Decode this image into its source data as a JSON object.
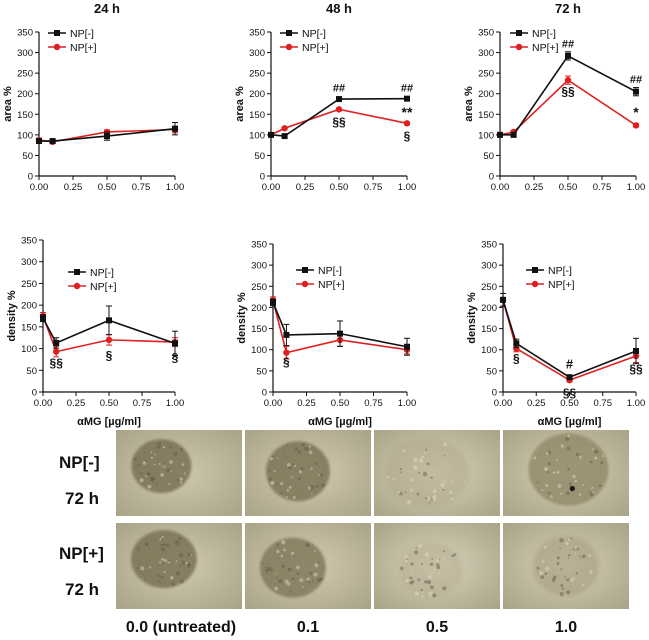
{
  "colors": {
    "np_minus": "#111111",
    "np_plus": "#e02020",
    "axis": "#111111"
  },
  "chart_data": [
    {
      "type": "line",
      "title": "24 h",
      "xlabel": "",
      "ylabel": "area %",
      "x": [
        0.0,
        0.1,
        0.5,
        1.0
      ],
      "xlim": [
        0,
        1
      ],
      "ylim": [
        0,
        350
      ],
      "xticks": [
        "0.00",
        "0.25",
        "0.50",
        "0.75",
        "1.00"
      ],
      "yticks": [
        "0",
        "50",
        "100",
        "150",
        "200",
        "250",
        "300",
        "350"
      ],
      "legend": [
        "NP[-]",
        "NP[+]"
      ],
      "legend_position": "top-left",
      "series": [
        {
          "name": "NP[-]",
          "values": [
            85,
            85,
            97,
            115
          ],
          "errors": [
            6,
            4,
            10,
            15
          ]
        },
        {
          "name": "NP[+]",
          "values": [
            87,
            83,
            107,
            113
          ],
          "errors": [
            5,
            4,
            5,
            8
          ]
        }
      ],
      "annotations": []
    },
    {
      "type": "line",
      "title": "48 h",
      "xlabel": "",
      "ylabel": "area %",
      "x": [
        0.0,
        0.1,
        0.5,
        1.0
      ],
      "xlim": [
        0,
        1
      ],
      "ylim": [
        0,
        350
      ],
      "xticks": [
        "0.00",
        "0.25",
        "0.50",
        "0.75",
        "1.00"
      ],
      "yticks": [
        "0",
        "50",
        "100",
        "150",
        "200",
        "250",
        "300",
        "350"
      ],
      "legend": [
        "NP[-]",
        "NP[+]"
      ],
      "legend_position": "top-left",
      "series": [
        {
          "name": "NP[-]",
          "values": [
            100,
            97,
            187,
            188
          ],
          "errors": [
            4,
            3,
            3,
            3
          ]
        },
        {
          "name": "NP[+]",
          "values": [
            100,
            116,
            162,
            128
          ],
          "errors": [
            4,
            3,
            3,
            3
          ]
        }
      ],
      "annotations": [
        {
          "text": "##",
          "x": 0.5,
          "y": 205,
          "color": "np_minus",
          "size": 11
        },
        {
          "text": "##",
          "x": 1.0,
          "y": 205,
          "color": "np_minus",
          "size": 11
        },
        {
          "text": "§§",
          "x": 0.5,
          "y": 122,
          "color": "np_minus",
          "size": 12
        },
        {
          "text": "**",
          "x": 1.0,
          "y": 143,
          "color": "np_minus",
          "size": 14
        },
        {
          "text": "§",
          "x": 1.0,
          "y": 88,
          "color": "np_minus",
          "size": 12
        }
      ]
    },
    {
      "type": "line",
      "title": "72 h",
      "xlabel": "",
      "ylabel": "area %",
      "x": [
        0.0,
        0.1,
        0.5,
        1.0
      ],
      "xlim": [
        0,
        1
      ],
      "ylim": [
        0,
        350
      ],
      "xticks": [
        "0.00",
        "0.25",
        "0.50",
        "0.75",
        "1.00"
      ],
      "yticks": [
        "0",
        "50",
        "100",
        "150",
        "200",
        "250",
        "300",
        "350"
      ],
      "legend": [
        "NP[-]",
        "NP[+]"
      ],
      "legend_position": "top-left",
      "series": [
        {
          "name": "NP[-]",
          "values": [
            100,
            100,
            292,
            205
          ],
          "errors": [
            5,
            4,
            10,
            10
          ]
        },
        {
          "name": "NP[+]",
          "values": [
            100,
            107,
            233,
            123
          ],
          "errors": [
            5,
            4,
            10,
            4
          ]
        }
      ],
      "annotations": [
        {
          "text": "##",
          "x": 0.5,
          "y": 312,
          "color": "np_minus",
          "size": 11
        },
        {
          "text": "##",
          "x": 1.0,
          "y": 226,
          "color": "np_minus",
          "size": 11
        },
        {
          "text": "§§",
          "x": 0.5,
          "y": 196,
          "color": "np_minus",
          "size": 12
        },
        {
          "text": "*",
          "x": 1.0,
          "y": 143,
          "color": "np_minus",
          "size": 14
        }
      ]
    },
    {
      "type": "line",
      "title": "",
      "xlabel": "αMG [µg/ml]",
      "ylabel": "density %",
      "x": [
        0.0,
        0.1,
        0.5,
        1.0
      ],
      "xlim": [
        0,
        1
      ],
      "ylim": [
        0,
        350
      ],
      "xticks": [
        "0.00",
        "0.25",
        "0.50",
        "0.75",
        "1.00"
      ],
      "yticks": [
        "0",
        "50",
        "100",
        "150",
        "200",
        "250",
        "300",
        "350"
      ],
      "legend": [
        "NP[-]",
        "NP[+]"
      ],
      "legend_position": "right",
      "series": [
        {
          "name": "NP[-]",
          "values": [
            170,
            113,
            165,
            112
          ],
          "errors": [
            8,
            12,
            33,
            28
          ]
        },
        {
          "name": "NP[+]",
          "values": [
            175,
            93,
            120,
            115
          ],
          "errors": [
            8,
            12,
            12,
            10
          ]
        }
      ],
      "annotations": [
        {
          "text": "§§",
          "x": 0.1,
          "y": 58,
          "color": "np_minus",
          "size": 12
        },
        {
          "text": "§",
          "x": 0.5,
          "y": 75,
          "color": "np_minus",
          "size": 12
        },
        {
          "text": "§",
          "x": 1.0,
          "y": 70,
          "color": "np_minus",
          "size": 12
        }
      ]
    },
    {
      "type": "line",
      "title": "",
      "xlabel": "αMG [µg/ml]",
      "ylabel": "density %",
      "x": [
        0.0,
        0.1,
        0.5,
        1.0
      ],
      "xlim": [
        0,
        1
      ],
      "ylim": [
        0,
        350
      ],
      "xticks": [
        "0.00",
        "0.25",
        "0.50",
        "0.75",
        "1.00"
      ],
      "yticks": [
        "0",
        "50",
        "100",
        "150",
        "200",
        "250",
        "300",
        "350"
      ],
      "legend": [
        "NP[-]",
        "NP[+]"
      ],
      "legend_position": "top-right",
      "series": [
        {
          "name": "NP[-]",
          "values": [
            212,
            135,
            138,
            107
          ],
          "errors": [
            8,
            25,
            30,
            20
          ]
        },
        {
          "name": "NP[+]",
          "values": [
            217,
            93,
            123,
            100
          ],
          "errors": [
            8,
            15,
            15,
            10
          ]
        }
      ],
      "annotations": [
        {
          "text": "§",
          "x": 0.1,
          "y": 62,
          "color": "np_minus",
          "size": 12
        }
      ]
    },
    {
      "type": "line",
      "title": "",
      "xlabel": "αMG [µg/ml]",
      "ylabel": "density %",
      "x": [
        0.0,
        0.1,
        0.5,
        1.0
      ],
      "xlim": [
        0,
        1
      ],
      "ylim": [
        0,
        350
      ],
      "xticks": [
        "0.00",
        "0.25",
        "0.50",
        "0.75",
        "1.00"
      ],
      "yticks": [
        "0",
        "50",
        "100",
        "150",
        "200",
        "250",
        "300",
        "350"
      ],
      "legend": [
        "NP[-]",
        "NP[+]"
      ],
      "legend_position": "top-right",
      "series": [
        {
          "name": "NP[-]",
          "values": [
            218,
            115,
            35,
            97
          ],
          "errors": [
            15,
            10,
            5,
            30
          ]
        },
        {
          "name": "NP[+]",
          "values": [
            218,
            103,
            28,
            85
          ],
          "errors": [
            15,
            8,
            4,
            15
          ]
        }
      ],
      "annotations": [
        {
          "text": "§",
          "x": 0.1,
          "y": 70,
          "color": "np_minus",
          "size": 12
        },
        {
          "text": "#",
          "x": 0.5,
          "y": 55,
          "color": "np_minus",
          "size": 13
        },
        {
          "text": "§§",
          "x": 0.5,
          "y": -12,
          "color": "np_minus",
          "size": 12
        },
        {
          "text": "§§",
          "x": 1.0,
          "y": 45,
          "color": "np_minus",
          "size": 12
        }
      ]
    }
  ],
  "micrographs": {
    "rows": [
      {
        "group": "NP[-]",
        "time": "72 h"
      },
      {
        "group": "NP[+]",
        "time": "72 h"
      }
    ],
    "columns": [
      "0.0 (untreated)",
      "0.1",
      "0.5",
      "1.0"
    ]
  }
}
